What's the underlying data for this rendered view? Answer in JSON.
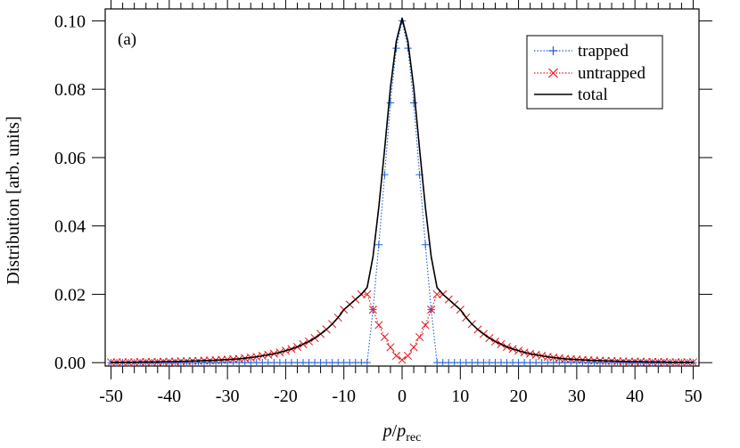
{
  "chart_data": {
    "type": "line",
    "panel_label": "(a)",
    "ylabel": "Distribution [arb. units]",
    "xlabel": {
      "italic_p": "p",
      "slash": "/",
      "italic_p2": "p",
      "subscript": "rec"
    },
    "xlim": [
      -51,
      51
    ],
    "ylim": [
      -0.001,
      0.1035
    ],
    "xticks": [
      -50,
      -40,
      -30,
      -20,
      -10,
      0,
      10,
      20,
      30,
      40,
      50
    ],
    "xtick_labels": [
      "-50",
      "-40",
      "-30",
      "-20",
      "-10",
      "0",
      "10",
      "20",
      "30",
      "40",
      "50"
    ],
    "yticks": [
      0.0,
      0.02,
      0.04,
      0.06,
      0.08,
      0.1
    ],
    "ytick_labels": [
      "0.00",
      "0.02",
      "0.04",
      "0.06",
      "0.08",
      "0.10"
    ],
    "legend_position": "top-right",
    "legend": [
      {
        "label": "trapped",
        "color": "#1f5fd6",
        "marker": "plus",
        "style": "dotted"
      },
      {
        "label": "untrapped",
        "color": "#e8151b",
        "marker": "cross",
        "style": "dotted"
      },
      {
        "label": "total",
        "color": "#000000",
        "marker": "none",
        "style": "solid"
      }
    ],
    "x": [
      -50,
      -49,
      -48,
      -47,
      -46,
      -45,
      -44,
      -43,
      -42,
      -41,
      -40,
      -39,
      -38,
      -37,
      -36,
      -35,
      -34,
      -33,
      -32,
      -31,
      -30,
      -29,
      -28,
      -27,
      -26,
      -25,
      -24,
      -23,
      -22,
      -21,
      -20,
      -19,
      -18,
      -17,
      -16,
      -15,
      -14,
      -13,
      -12,
      -11,
      -10,
      -9,
      -8,
      -7,
      -6,
      -5,
      -4,
      -3,
      -2,
      -1,
      0,
      1,
      2,
      3,
      4,
      5,
      6,
      7,
      8,
      9,
      10,
      11,
      12,
      13,
      14,
      15,
      16,
      17,
      18,
      19,
      20,
      21,
      22,
      23,
      24,
      25,
      26,
      27,
      28,
      29,
      30,
      31,
      32,
      33,
      34,
      35,
      36,
      37,
      38,
      39,
      40,
      41,
      42,
      43,
      44,
      45,
      46,
      47,
      48,
      49,
      50
    ],
    "series": [
      {
        "name": "trapped",
        "values": [
          0,
          0,
          0,
          0,
          0,
          0,
          0,
          0,
          0,
          0,
          0,
          0,
          0,
          0,
          0,
          0,
          0,
          0,
          0,
          0,
          0,
          0,
          0,
          0,
          0,
          0,
          0,
          0,
          0,
          0,
          0,
          0,
          0,
          0,
          0,
          0,
          0,
          0,
          0,
          0,
          0,
          0,
          0,
          0,
          0,
          0.0155,
          0.0345,
          0.055,
          0.076,
          0.092,
          0.1,
          0.092,
          0.076,
          0.055,
          0.0345,
          0.0155,
          0,
          0,
          0,
          0,
          0,
          0,
          0,
          0,
          0,
          0,
          0,
          0,
          0,
          0,
          0,
          0,
          0,
          0,
          0,
          0,
          0,
          0,
          0,
          0,
          0,
          0,
          0,
          0,
          0,
          0,
          0,
          0,
          0,
          0,
          0,
          0,
          0,
          0,
          0,
          0,
          0,
          0,
          0,
          0,
          0
        ]
      },
      {
        "name": "untrapped",
        "values": [
          0.0001,
          0.0001,
          0.0001,
          0.0001,
          0.0001,
          0.0002,
          0.0002,
          0.0002,
          0.0002,
          0.0003,
          0.0003,
          0.0003,
          0.0004,
          0.0004,
          0.0005,
          0.0005,
          0.0006,
          0.0006,
          0.0007,
          0.0008,
          0.0009,
          0.001,
          0.0011,
          0.0013,
          0.0015,
          0.0017,
          0.002,
          0.0023,
          0.0026,
          0.003,
          0.0035,
          0.004,
          0.0046,
          0.0054,
          0.0062,
          0.0072,
          0.0084,
          0.0097,
          0.0113,
          0.0132,
          0.0155,
          0.017,
          0.0185,
          0.02,
          0.02,
          0.0155,
          0.011,
          0.0075,
          0.0045,
          0.002,
          0.0008,
          0.002,
          0.0045,
          0.0075,
          0.011,
          0.0155,
          0.02,
          0.02,
          0.0185,
          0.017,
          0.0155,
          0.0132,
          0.0113,
          0.0097,
          0.0084,
          0.0072,
          0.0062,
          0.0054,
          0.0046,
          0.004,
          0.0035,
          0.003,
          0.0026,
          0.0023,
          0.002,
          0.0017,
          0.0015,
          0.0013,
          0.0011,
          0.001,
          0.0009,
          0.0008,
          0.0007,
          0.0006,
          0.0006,
          0.0005,
          0.0005,
          0.0004,
          0.0004,
          0.0003,
          0.0003,
          0.0003,
          0.0002,
          0.0002,
          0.0002,
          0.0002,
          0.0001,
          0.0001,
          0.0001,
          0.0001,
          0.0001
        ]
      },
      {
        "name": "total",
        "values": [
          0.0001,
          0.0001,
          0.0001,
          0.0001,
          0.0001,
          0.0002,
          0.0002,
          0.0002,
          0.0002,
          0.0003,
          0.0003,
          0.0003,
          0.0004,
          0.0004,
          0.0005,
          0.0005,
          0.0006,
          0.0006,
          0.0007,
          0.0008,
          0.0009,
          0.001,
          0.0011,
          0.0013,
          0.0015,
          0.0017,
          0.002,
          0.0023,
          0.0026,
          0.003,
          0.0035,
          0.004,
          0.0046,
          0.0054,
          0.0062,
          0.0072,
          0.0084,
          0.0097,
          0.0113,
          0.0132,
          0.0155,
          0.017,
          0.0185,
          0.02,
          0.022,
          0.031,
          0.0455,
          0.0625,
          0.0805,
          0.094,
          0.1008,
          0.094,
          0.0805,
          0.0625,
          0.0455,
          0.031,
          0.022,
          0.02,
          0.0185,
          0.017,
          0.0155,
          0.0132,
          0.0113,
          0.0097,
          0.0084,
          0.0072,
          0.0062,
          0.0054,
          0.0046,
          0.004,
          0.0035,
          0.003,
          0.0026,
          0.0023,
          0.002,
          0.0017,
          0.0015,
          0.0013,
          0.0011,
          0.001,
          0.0009,
          0.0008,
          0.0007,
          0.0006,
          0.0006,
          0.0005,
          0.0005,
          0.0004,
          0.0004,
          0.0003,
          0.0003,
          0.0003,
          0.0002,
          0.0002,
          0.0002,
          0.0002,
          0.0001,
          0.0001,
          0.0001,
          0.0001,
          0.0001
        ]
      }
    ]
  }
}
